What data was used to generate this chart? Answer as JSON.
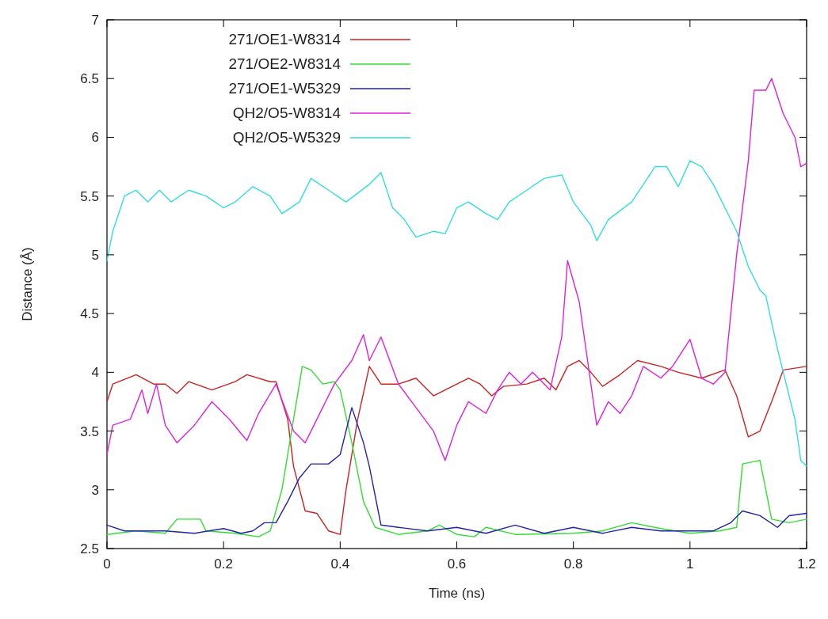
{
  "chart_data": {
    "type": "line",
    "xlabel": "Time (ns)",
    "ylabel": "Distance (Å)",
    "xlim": [
      0,
      1.2
    ],
    "ylim": [
      2.5,
      7
    ],
    "xticks": [
      0,
      0.2,
      0.4,
      0.6,
      0.8,
      1,
      1.2
    ],
    "yticks": [
      2.5,
      3,
      3.5,
      4,
      4.5,
      5,
      5.5,
      6,
      6.5,
      7
    ],
    "grid": false,
    "legend": "top left",
    "line_style": "solid",
    "series": [
      {
        "name": "271/OE1-W8314",
        "color": "#cc2222",
        "x": [
          0,
          0.01,
          0.05,
          0.08,
          0.1,
          0.12,
          0.14,
          0.18,
          0.22,
          0.24,
          0.28,
          0.29,
          0.31,
          0.32,
          0.34,
          0.36,
          0.38,
          0.4,
          0.41,
          0.43,
          0.45,
          0.47,
          0.5,
          0.53,
          0.56,
          0.58,
          0.62,
          0.64,
          0.66,
          0.68,
          0.72,
          0.75,
          0.77,
          0.79,
          0.81,
          0.83,
          0.85,
          0.88,
          0.91,
          0.95,
          0.98,
          1.02,
          1.06,
          1.08,
          1.1,
          1.12,
          1.14,
          1.16,
          1.2
        ],
        "values": [
          3.75,
          3.9,
          3.98,
          3.9,
          3.9,
          3.82,
          3.92,
          3.85,
          3.92,
          3.98,
          3.92,
          3.92,
          3.6,
          3.2,
          2.82,
          2.8,
          2.65,
          2.62,
          3.0,
          3.6,
          4.05,
          3.9,
          3.9,
          3.95,
          3.8,
          3.85,
          3.95,
          3.9,
          3.8,
          3.88,
          3.9,
          3.95,
          3.85,
          4.05,
          4.1,
          4.0,
          3.88,
          3.98,
          4.1,
          4.05,
          4.0,
          3.95,
          4.02,
          3.8,
          3.45,
          3.5,
          3.75,
          4.02,
          4.05
        ]
      },
      {
        "name": "271/OE2-W8314",
        "color": "#33dd33",
        "x": [
          0,
          0.05,
          0.1,
          0.12,
          0.16,
          0.17,
          0.22,
          0.26,
          0.28,
          0.3,
          0.32,
          0.335,
          0.35,
          0.37,
          0.39,
          0.4,
          0.42,
          0.44,
          0.46,
          0.5,
          0.55,
          0.57,
          0.6,
          0.63,
          0.65,
          0.7,
          0.8,
          0.85,
          0.9,
          0.95,
          1.0,
          1.05,
          1.08,
          1.09,
          1.12,
          1.14,
          1.17,
          1.2
        ],
        "values": [
          2.62,
          2.65,
          2.63,
          2.75,
          2.75,
          2.65,
          2.63,
          2.6,
          2.65,
          3.0,
          3.6,
          4.05,
          4.02,
          3.9,
          3.92,
          3.85,
          3.4,
          2.9,
          2.68,
          2.62,
          2.65,
          2.7,
          2.62,
          2.6,
          2.68,
          2.62,
          2.63,
          2.65,
          2.72,
          2.67,
          2.63,
          2.65,
          2.68,
          3.22,
          3.25,
          2.75,
          2.72,
          2.75
        ]
      },
      {
        "name": "271/OE1-W5329",
        "color": "#2222aa",
        "x": [
          0,
          0.03,
          0.1,
          0.15,
          0.2,
          0.23,
          0.25,
          0.27,
          0.29,
          0.31,
          0.33,
          0.35,
          0.38,
          0.4,
          0.42,
          0.44,
          0.45,
          0.47,
          0.5,
          0.55,
          0.6,
          0.65,
          0.7,
          0.75,
          0.8,
          0.85,
          0.9,
          0.95,
          1.0,
          1.04,
          1.07,
          1.09,
          1.12,
          1.15,
          1.17,
          1.2
        ],
        "values": [
          2.7,
          2.65,
          2.65,
          2.63,
          2.67,
          2.63,
          2.65,
          2.72,
          2.72,
          2.9,
          3.1,
          3.22,
          3.22,
          3.3,
          3.7,
          3.4,
          3.2,
          2.7,
          2.68,
          2.65,
          2.68,
          2.63,
          2.7,
          2.63,
          2.68,
          2.63,
          2.68,
          2.65,
          2.65,
          2.65,
          2.72,
          2.82,
          2.78,
          2.68,
          2.78,
          2.8
        ]
      },
      {
        "name": "QH2/O5-W8314",
        "color": "#dd22dd",
        "x": [
          0,
          0.01,
          0.04,
          0.06,
          0.07,
          0.085,
          0.1,
          0.12,
          0.15,
          0.18,
          0.21,
          0.24,
          0.26,
          0.29,
          0.32,
          0.34,
          0.37,
          0.39,
          0.42,
          0.44,
          0.45,
          0.47,
          0.5,
          0.53,
          0.56,
          0.58,
          0.6,
          0.62,
          0.65,
          0.67,
          0.69,
          0.71,
          0.73,
          0.76,
          0.78,
          0.79,
          0.81,
          0.83,
          0.84,
          0.86,
          0.88,
          0.9,
          0.92,
          0.95,
          0.97,
          1.0,
          1.02,
          1.04,
          1.06,
          1.08,
          1.1,
          1.11,
          1.13,
          1.14,
          1.16,
          1.18,
          1.19,
          1.2
        ],
        "values": [
          3.3,
          3.55,
          3.6,
          3.85,
          3.65,
          3.9,
          3.55,
          3.4,
          3.55,
          3.75,
          3.6,
          3.42,
          3.65,
          3.9,
          3.5,
          3.4,
          3.7,
          3.9,
          4.1,
          4.32,
          4.1,
          4.3,
          3.9,
          3.7,
          3.5,
          3.25,
          3.55,
          3.75,
          3.65,
          3.85,
          4.0,
          3.9,
          4.0,
          3.85,
          4.3,
          4.95,
          4.6,
          3.9,
          3.55,
          3.75,
          3.65,
          3.8,
          4.05,
          3.95,
          4.05,
          4.28,
          3.95,
          3.9,
          4.0,
          5.0,
          5.8,
          6.4,
          6.4,
          6.5,
          6.2,
          6.0,
          5.75,
          5.78
        ]
      },
      {
        "name": "QH2/O5-W5329",
        "color": "#33dddd",
        "x": [
          0,
          0.01,
          0.02,
          0.03,
          0.05,
          0.07,
          0.09,
          0.11,
          0.14,
          0.17,
          0.2,
          0.22,
          0.25,
          0.28,
          0.3,
          0.33,
          0.35,
          0.38,
          0.41,
          0.45,
          0.47,
          0.49,
          0.51,
          0.53,
          0.56,
          0.58,
          0.6,
          0.62,
          0.65,
          0.67,
          0.69,
          0.72,
          0.75,
          0.78,
          0.8,
          0.83,
          0.84,
          0.86,
          0.9,
          0.92,
          0.94,
          0.96,
          0.98,
          1.0,
          1.02,
          1.04,
          1.06,
          1.08,
          1.1,
          1.12,
          1.13,
          1.15,
          1.18,
          1.19,
          1.2
        ],
        "values": [
          4.95,
          5.2,
          5.35,
          5.5,
          5.55,
          5.45,
          5.55,
          5.45,
          5.55,
          5.5,
          5.4,
          5.45,
          5.58,
          5.5,
          5.35,
          5.45,
          5.65,
          5.55,
          5.45,
          5.6,
          5.7,
          5.4,
          5.3,
          5.15,
          5.2,
          5.18,
          5.4,
          5.45,
          5.35,
          5.3,
          5.45,
          5.55,
          5.65,
          5.68,
          5.45,
          5.25,
          5.12,
          5.3,
          5.45,
          5.6,
          5.75,
          5.75,
          5.58,
          5.8,
          5.75,
          5.6,
          5.4,
          5.2,
          4.9,
          4.7,
          4.65,
          4.2,
          3.6,
          3.25,
          3.2
        ]
      }
    ]
  }
}
